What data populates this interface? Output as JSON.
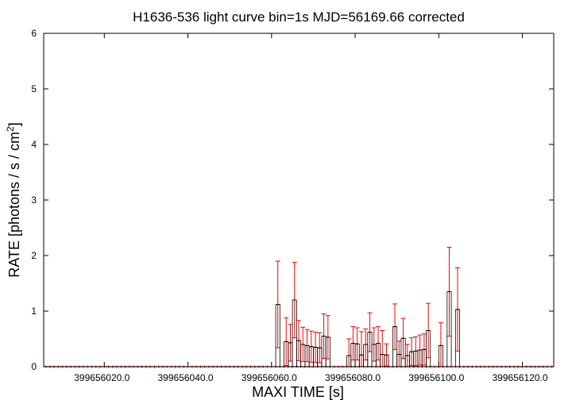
{
  "chart_data": {
    "type": "step-errorbar",
    "title": "H1636-536 light curve bin=1s MJD=56169.66 corrected",
    "xlabel": "MAXI TIME [s]",
    "ylabel_main": "RATE [photons / s / cm",
    "ylabel_sup": "2",
    "ylabel_end": "]",
    "xlim": [
      399656005.5,
      399656127.5
    ],
    "ylim": [
      0,
      6
    ],
    "x_ticks": [
      399656020,
      399656040,
      399656060,
      399656080,
      399656100,
      399656120
    ],
    "x_tick_labels": [
      "399656020.0",
      "399656040.0",
      "399656060.0",
      "399656080.0",
      "399656100.0",
      "399656120.0"
    ],
    "y_ticks": [
      0,
      1,
      2,
      3,
      4,
      5,
      6
    ],
    "y_tick_labels": [
      "0",
      "1",
      "2",
      "3",
      "4",
      "5",
      "6"
    ],
    "grid": false,
    "colors": {
      "step": "#000000",
      "error": "#ff0000",
      "axis": "#000000"
    },
    "bin_width": 1,
    "bins": [
      {
        "x": 399656061.5,
        "y": 1.12,
        "err": 0.78
      },
      {
        "x": 399656063.5,
        "y": 0.45,
        "err": 0.43
      },
      {
        "x": 399656064.5,
        "y": 0.43,
        "err": 0.33
      },
      {
        "x": 399656065.5,
        "y": 1.2,
        "err": 0.68
      },
      {
        "x": 399656066.5,
        "y": 0.47,
        "err": 0.36
      },
      {
        "x": 399656067.5,
        "y": 0.4,
        "err": 0.31
      },
      {
        "x": 399656068.5,
        "y": 0.38,
        "err": 0.29
      },
      {
        "x": 399656069.5,
        "y": 0.36,
        "err": 0.28
      },
      {
        "x": 399656070.5,
        "y": 0.35,
        "err": 0.27
      },
      {
        "x": 399656071.5,
        "y": 0.34,
        "err": 0.27
      },
      {
        "x": 399656072.5,
        "y": 0.55,
        "err": 0.4
      },
      {
        "x": 399656073.5,
        "y": 0.53,
        "err": 0.39
      },
      {
        "x": 399656078.5,
        "y": 0.2,
        "err": 0.3
      },
      {
        "x": 399656079.5,
        "y": 0.42,
        "err": 0.3
      },
      {
        "x": 399656080.5,
        "y": 0.41,
        "err": 0.29
      },
      {
        "x": 399656081.5,
        "y": 0.21,
        "err": 0.42
      },
      {
        "x": 399656082.5,
        "y": 0.4,
        "err": 0.28
      },
      {
        "x": 399656083.5,
        "y": 0.62,
        "err": 0.35
      },
      {
        "x": 399656084.5,
        "y": 0.4,
        "err": 0.3
      },
      {
        "x": 399656085.5,
        "y": 0.42,
        "err": 0.3
      },
      {
        "x": 399656086.5,
        "y": 0.22,
        "err": 0.43
      },
      {
        "x": 399656087.5,
        "y": 0.21,
        "err": 0.2
      },
      {
        "x": 399656089.5,
        "y": 0.72,
        "err": 0.41
      },
      {
        "x": 399656090.5,
        "y": 0.22,
        "err": 0.24
      },
      {
        "x": 399656091.5,
        "y": 0.51,
        "err": 0.36
      },
      {
        "x": 399656092.5,
        "y": 0.2,
        "err": 0.2
      },
      {
        "x": 399656093.5,
        "y": 0.27,
        "err": 0.25
      },
      {
        "x": 399656094.5,
        "y": 0.28,
        "err": 0.26
      },
      {
        "x": 399656095.5,
        "y": 0.3,
        "err": 0.27
      },
      {
        "x": 399656096.5,
        "y": 0.31,
        "err": 0.28
      },
      {
        "x": 399656097.5,
        "y": 0.65,
        "err": 0.49
      },
      {
        "x": 399656100.5,
        "y": 0.38,
        "err": 0.41
      },
      {
        "x": 399656102.5,
        "y": 1.35,
        "err": 0.8
      },
      {
        "x": 399656104.5,
        "y": 1.03,
        "err": 0.75
      }
    ]
  }
}
